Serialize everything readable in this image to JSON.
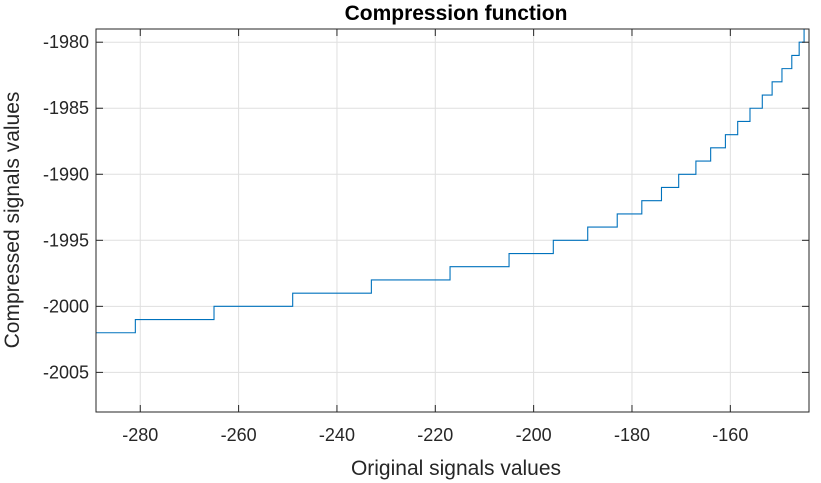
{
  "chart_data": {
    "type": "line",
    "title": "Compression function",
    "xlabel": "Original signals values",
    "ylabel": "Compressed signals values",
    "xlim": [
      -289,
      -144
    ],
    "ylim": [
      -2008,
      -1979
    ],
    "xticks": [
      -280,
      -260,
      -240,
      -220,
      -200,
      -180,
      -160
    ],
    "yticks": [
      -1980,
      -1985,
      -1990,
      -1995,
      -2000,
      -2005
    ],
    "xtick_labels": [
      "-280",
      "-260",
      "-240",
      "-220",
      "-200",
      "-180",
      "-160"
    ],
    "ytick_labels": [
      "-1980",
      "-1985",
      "-1990",
      "-1995",
      "-2000",
      "-2005"
    ],
    "grid": true,
    "line_color": "#0072BD",
    "series": [
      {
        "step": "post",
        "points": [
          [
            -289,
            -2002
          ],
          [
            -281,
            -2001
          ],
          [
            -265,
            -2000
          ],
          [
            -249,
            -1999
          ],
          [
            -233,
            -1998
          ],
          [
            -217,
            -1997
          ],
          [
            -205,
            -1996
          ],
          [
            -196,
            -1995
          ],
          [
            -189,
            -1994
          ],
          [
            -183,
            -1993
          ],
          [
            -178,
            -1992
          ],
          [
            -174,
            -1991
          ],
          [
            -170.5,
            -1990
          ],
          [
            -167,
            -1989
          ],
          [
            -164,
            -1988
          ],
          [
            -161,
            -1987
          ],
          [
            -158.5,
            -1986
          ],
          [
            -156,
            -1985
          ],
          [
            -153.5,
            -1984
          ],
          [
            -151.5,
            -1983
          ],
          [
            -149.5,
            -1982
          ],
          [
            -147.5,
            -1981
          ],
          [
            -146,
            -1980
          ],
          [
            -145,
            -1979
          ],
          [
            -144,
            -1979
          ]
        ]
      }
    ]
  }
}
